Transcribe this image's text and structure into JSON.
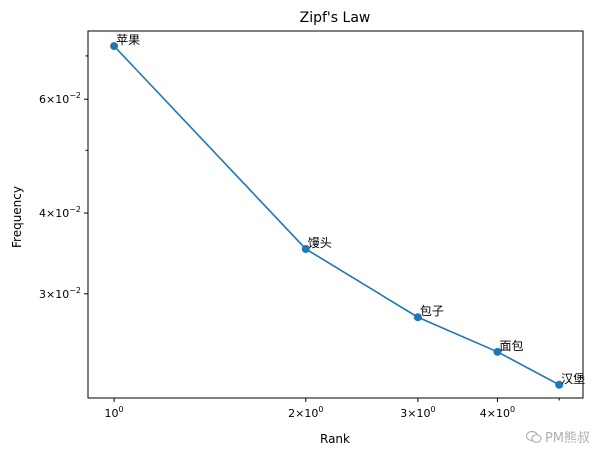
{
  "chart_data": {
    "type": "line",
    "title": "Zipf's Law",
    "xlabel": "Rank",
    "ylabel": "Frequency",
    "xscale": "log",
    "yscale": "log",
    "x": [
      1,
      2,
      3,
      4,
      5
    ],
    "series": [
      {
        "values": [
          0.0725,
          0.0352,
          0.0276,
          0.0244,
          0.0217
        ],
        "point_labels": [
          "苹果",
          "馒头",
          "包子",
          "面包",
          "汉堡"
        ],
        "color": "#1f77b4"
      }
    ],
    "xlim": [
      0.91,
      5.45
    ],
    "ylim": [
      0.0207,
      0.0765
    ],
    "x_ticks": [
      {
        "value": 1,
        "base": "10",
        "exp": "0"
      },
      {
        "value": 2,
        "base": "2×10",
        "exp": "0"
      },
      {
        "value": 3,
        "base": "3×10",
        "exp": "0"
      },
      {
        "value": 4,
        "base": "4×10",
        "exp": "0"
      }
    ],
    "x_minor_ticks": [
      5
    ],
    "y_ticks": [
      {
        "value": 0.06,
        "base": "6×10",
        "exp": "−2"
      },
      {
        "value": 0.04,
        "base": "4×10",
        "exp": "−2"
      },
      {
        "value": 0.03,
        "base": "3×10",
        "exp": "−2"
      }
    ],
    "y_minor_ticks": [
      0.07,
      0.05
    ],
    "grid": false
  },
  "watermark": {
    "text": "PM熊叔",
    "icon": "wechat-icon"
  }
}
